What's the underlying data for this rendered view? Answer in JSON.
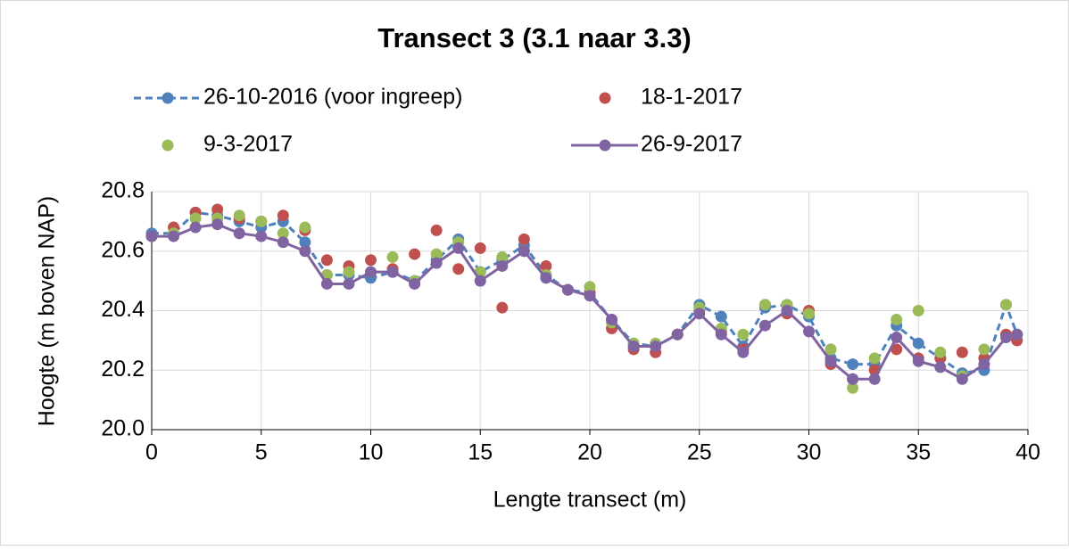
{
  "chart_data": {
    "type": "line",
    "title": "Transect 3 (3.1 naar 3.3)",
    "x_label": "Lengte transect (m)",
    "y_label": "Hoogte (m boven NAP)",
    "x": [
      0,
      1,
      2,
      3,
      4,
      5,
      6,
      7,
      8,
      9,
      10,
      11,
      12,
      13,
      14,
      15,
      16,
      17,
      18,
      19,
      20,
      21,
      22,
      23,
      24,
      25,
      26,
      27,
      28,
      29,
      30,
      31,
      32,
      33,
      34,
      35,
      36,
      37,
      38,
      39,
      39.5
    ],
    "series": [
      {
        "name": "26-10-2016 (voor ingreep)",
        "color": "#4f81bd",
        "line_style": "dashed",
        "values": [
          20.66,
          20.66,
          20.73,
          20.72,
          20.7,
          20.68,
          20.7,
          20.63,
          20.52,
          20.52,
          20.51,
          20.53,
          20.5,
          20.57,
          20.64,
          20.53,
          20.57,
          20.62,
          20.52,
          20.47,
          20.46,
          20.37,
          20.29,
          20.28,
          20.32,
          20.42,
          20.38,
          20.28,
          20.41,
          20.42,
          20.38,
          20.24,
          20.22,
          20.22,
          20.35,
          20.29,
          20.24,
          20.19,
          20.2,
          20.42,
          20.32
        ]
      },
      {
        "name": "18-1-2017",
        "color": "#c0504d",
        "line_style": "none",
        "values": [
          20.65,
          20.68,
          20.73,
          20.74,
          20.71,
          20.7,
          20.72,
          20.67,
          20.57,
          20.55,
          20.57,
          20.54,
          20.59,
          20.67,
          20.54,
          20.61,
          20.41,
          20.64,
          20.55,
          20.47,
          20.46,
          20.34,
          20.27,
          20.26,
          20.32,
          20.4,
          20.33,
          20.27,
          20.42,
          20.39,
          20.4,
          20.22,
          20.17,
          20.2,
          20.27,
          20.24,
          20.24,
          20.26,
          20.24,
          20.32,
          20.3
        ]
      },
      {
        "name": "9-3-2017",
        "color": "#9bbb59",
        "line_style": "none",
        "values": [
          20.65,
          20.66,
          20.71,
          20.71,
          20.72,
          20.7,
          20.66,
          20.68,
          20.52,
          20.53,
          20.53,
          20.58,
          20.5,
          20.59,
          20.63,
          20.53,
          20.58,
          20.6,
          20.52,
          20.47,
          20.48,
          20.36,
          20.29,
          20.29,
          20.32,
          20.41,
          20.34,
          20.32,
          20.42,
          20.42,
          20.39,
          20.27,
          20.14,
          20.24,
          20.37,
          20.4,
          20.26,
          20.18,
          20.27,
          20.42,
          20.32
        ]
      },
      {
        "name": "26-9-2017",
        "color": "#8064a2",
        "line_style": "solid",
        "values": [
          20.65,
          20.65,
          20.68,
          20.69,
          20.66,
          20.65,
          20.63,
          20.6,
          20.49,
          20.49,
          20.53,
          20.53,
          20.49,
          20.56,
          20.61,
          20.5,
          20.55,
          20.6,
          20.51,
          20.47,
          20.45,
          20.37,
          20.28,
          20.28,
          20.32,
          20.39,
          20.32,
          20.26,
          20.35,
          20.4,
          20.33,
          20.23,
          20.17,
          20.17,
          20.31,
          20.23,
          20.21,
          20.17,
          20.22,
          20.31,
          20.32
        ]
      }
    ],
    "xlim": [
      0,
      40
    ],
    "xticks": [
      0,
      5,
      10,
      15,
      20,
      25,
      30,
      35,
      40
    ],
    "ylim": [
      20,
      20.8
    ],
    "yticks": [
      {
        "value": 20,
        "label": "20.0"
      },
      20.2,
      20.4,
      20.6,
      20.8
    ],
    "grid": true,
    "legend": "top"
  }
}
